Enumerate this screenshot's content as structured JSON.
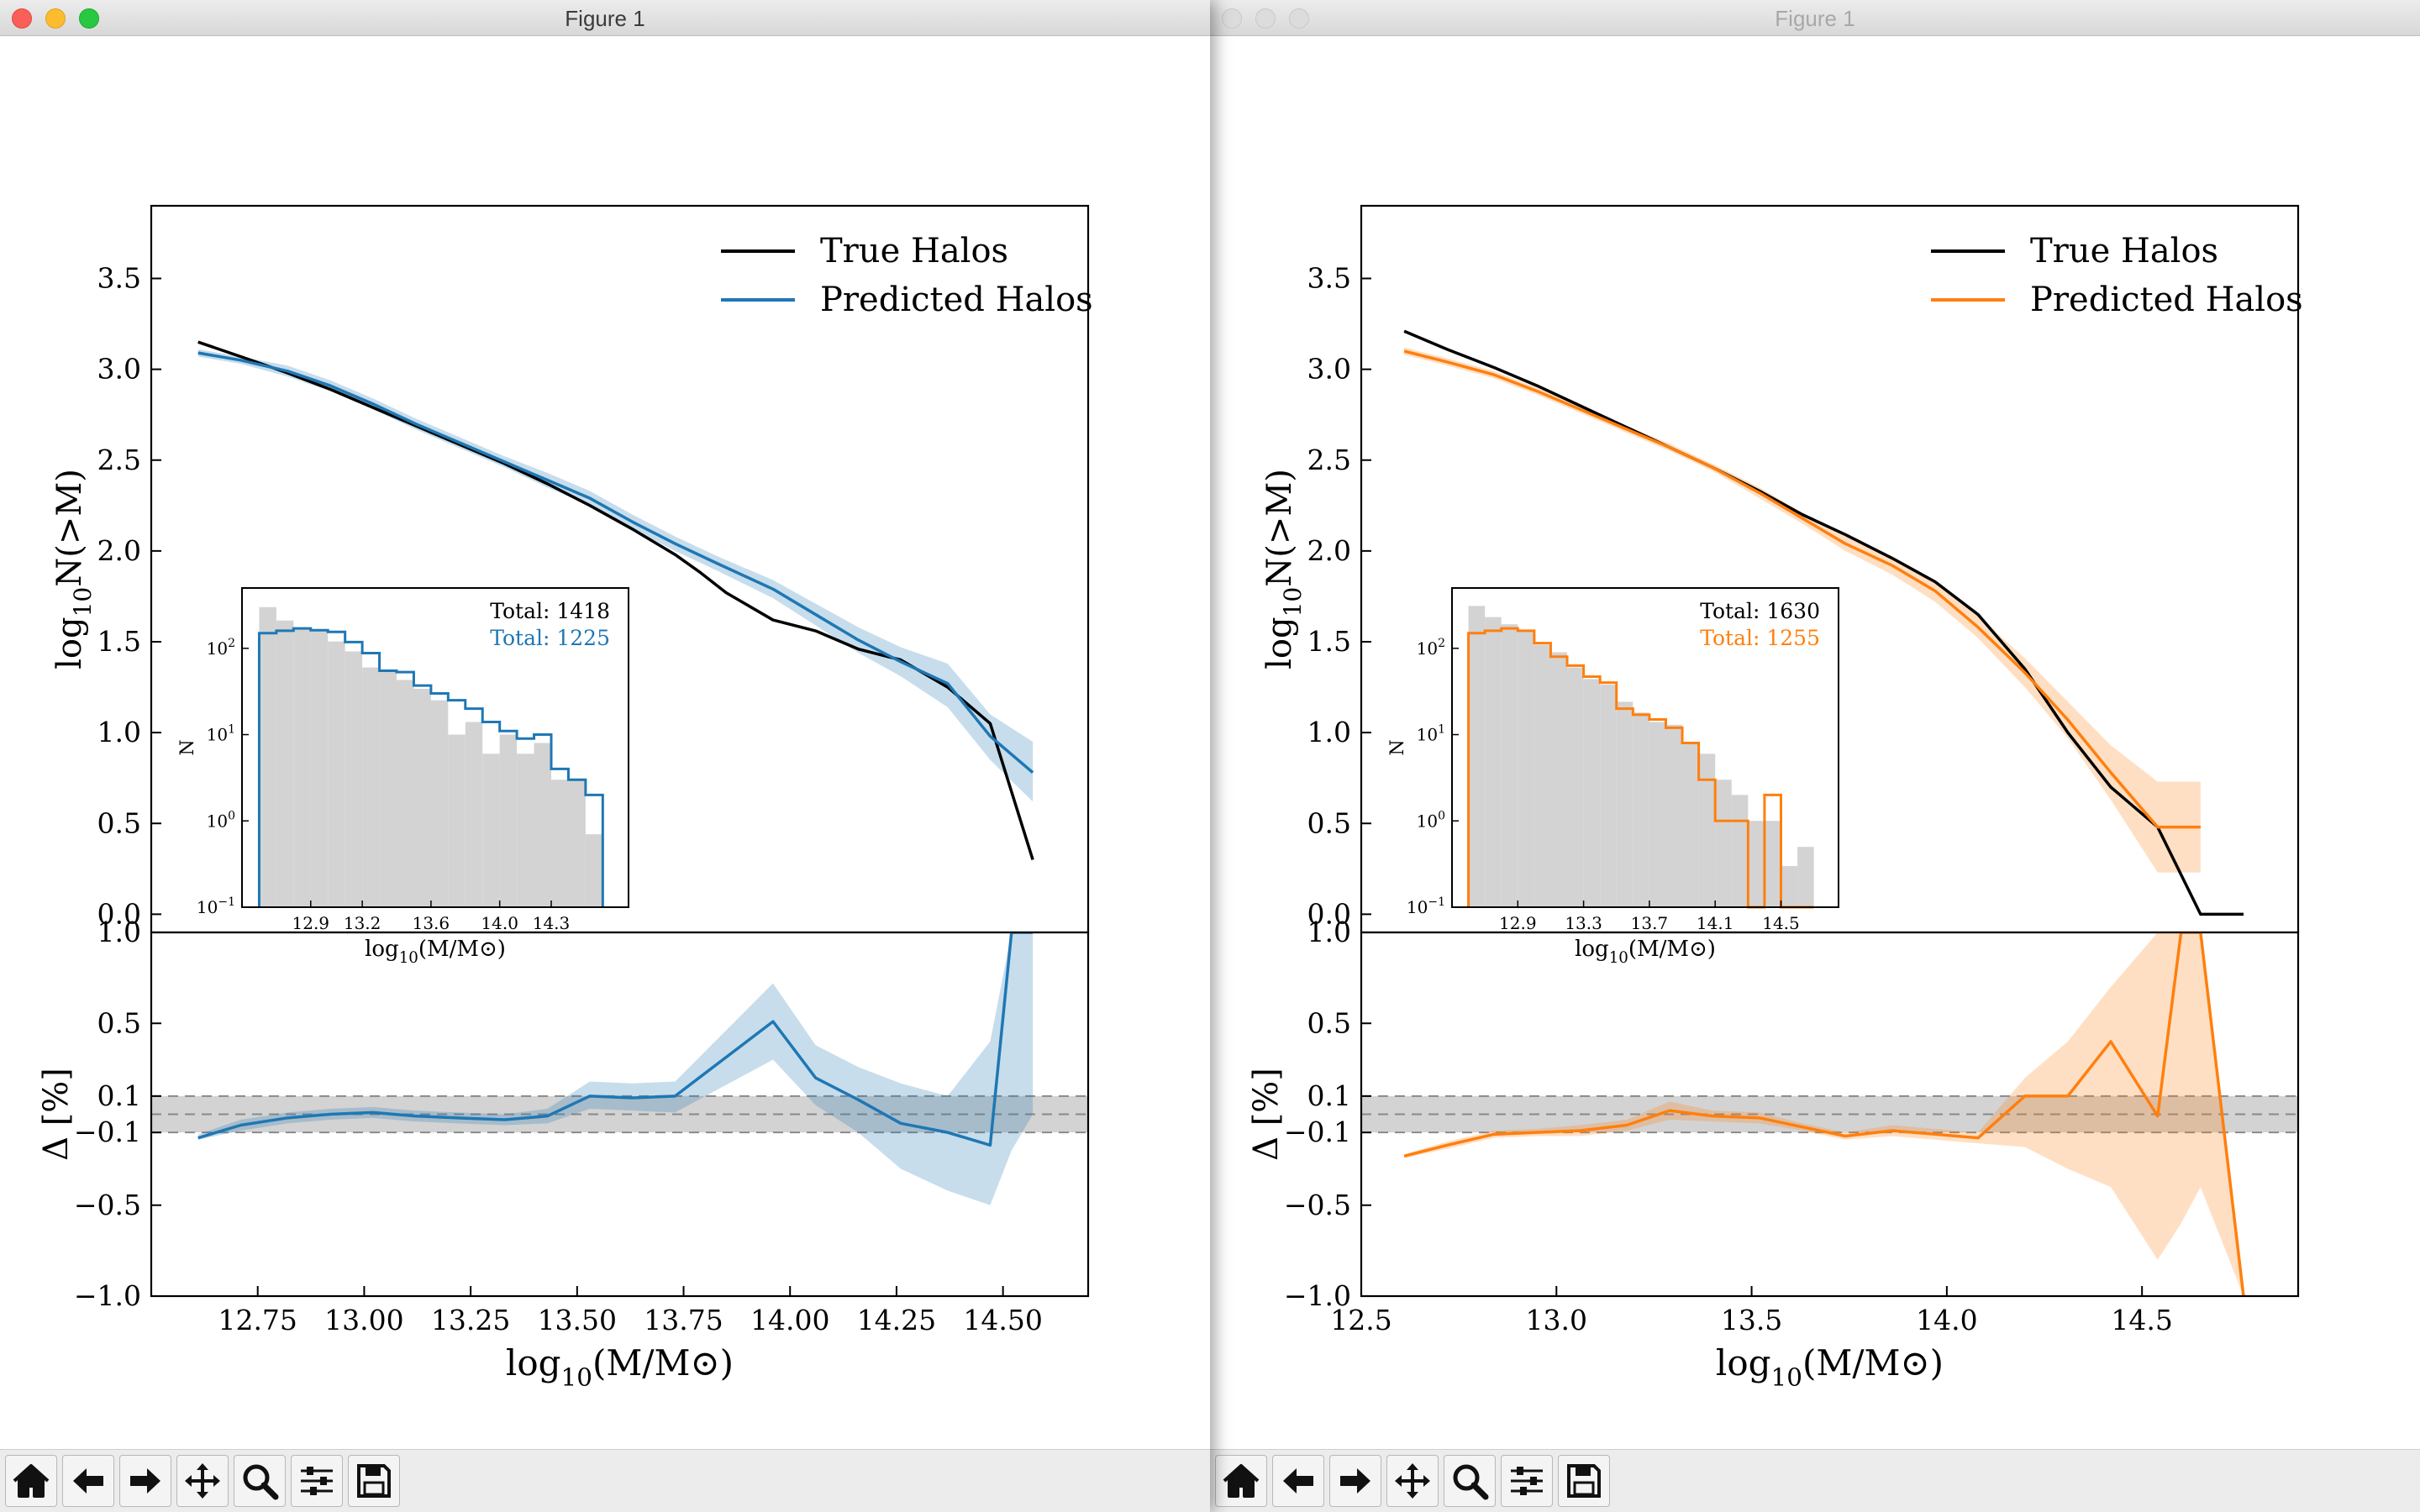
{
  "windows": [
    {
      "title": "Figure 1",
      "chart_data": [
        {
          "type": "line",
          "panel": "main",
          "ylabel": "log10N(>M)",
          "xlim": [
            12.5,
            14.7
          ],
          "ylim": [
            -0.1,
            3.9
          ],
          "yticks": [
            0.0,
            0.5,
            1.0,
            1.5,
            2.0,
            2.5,
            3.0,
            3.5
          ],
          "legend_location": "upper-right",
          "series": [
            {
              "name": "True Halos",
              "color": "#000000",
              "x": [
                12.61,
                12.71,
                12.82,
                12.92,
                13.02,
                13.12,
                13.22,
                13.33,
                13.43,
                13.53,
                13.63,
                13.73,
                13.79,
                13.85,
                13.96,
                14.06,
                14.16,
                14.26,
                14.37,
                14.47,
                14.57
              ],
              "y": [
                3.15,
                3.07,
                2.98,
                2.89,
                2.79,
                2.69,
                2.59,
                2.48,
                2.37,
                2.25,
                2.12,
                1.98,
                1.88,
                1.77,
                1.62,
                1.56,
                1.46,
                1.4,
                1.25,
                1.05,
                0.3
              ]
            },
            {
              "name": "Predicted Halos",
              "color": "#1f77b4",
              "x": [
                12.61,
                12.71,
                12.82,
                12.92,
                13.02,
                13.12,
                13.22,
                13.33,
                13.43,
                13.53,
                13.63,
                13.73,
                13.83,
                13.96,
                14.06,
                14.16,
                14.26,
                14.37,
                14.47,
                14.57
              ],
              "y": [
                3.09,
                3.05,
                2.99,
                2.91,
                2.81,
                2.7,
                2.6,
                2.49,
                2.39,
                2.29,
                2.16,
                2.04,
                1.93,
                1.79,
                1.65,
                1.51,
                1.39,
                1.27,
                0.98,
                0.78
              ],
              "band_low": [
                3.07,
                3.03,
                2.96,
                2.88,
                2.78,
                2.67,
                2.57,
                2.46,
                2.35,
                2.25,
                2.12,
                2.0,
                1.89,
                1.74,
                1.59,
                1.44,
                1.31,
                1.14,
                0.85,
                0.62
              ],
              "band_high": [
                3.11,
                3.07,
                3.02,
                2.94,
                2.84,
                2.73,
                2.63,
                2.52,
                2.43,
                2.33,
                2.2,
                2.08,
                1.97,
                1.84,
                1.71,
                1.58,
                1.47,
                1.38,
                1.1,
                0.95
              ]
            }
          ]
        },
        {
          "type": "line",
          "panel": "residual",
          "ylabel": "Δ [%]",
          "xlabel": "log10(M/M⊙)",
          "xlim": [
            12.5,
            14.7
          ],
          "ylim": [
            -1.0,
            1.0
          ],
          "yticks": [
            -1.0,
            -0.5,
            -0.1,
            0.1,
            0.5,
            1.0
          ],
          "ytick_labels": [
            "−1.0",
            "−0.5",
            "−0.1",
            "0.1",
            "0.5",
            "1.0"
          ],
          "xticks": [
            12.75,
            13.0,
            13.25,
            13.5,
            13.75,
            14.0,
            14.25,
            14.5
          ],
          "xtick_labels": [
            "12.75",
            "13.00",
            "13.25",
            "13.50",
            "13.75",
            "14.00",
            "14.25",
            "14.50"
          ],
          "band_range": [
            -0.1,
            0.1
          ],
          "series": [
            {
              "name": "Predicted Halos",
              "color": "#1f77b4",
              "x": [
                12.61,
                12.71,
                12.82,
                12.92,
                13.02,
                13.12,
                13.22,
                13.33,
                13.43,
                13.53,
                13.63,
                13.73,
                13.96,
                14.06,
                14.16,
                14.26,
                14.37,
                14.47,
                14.52,
                14.57
              ],
              "y": [
                -0.13,
                -0.06,
                -0.02,
                0.0,
                0.01,
                -0.01,
                -0.02,
                -0.03,
                -0.01,
                0.1,
                0.09,
                0.1,
                0.51,
                0.2,
                0.08,
                -0.05,
                -0.1,
                -0.17,
                1.0,
                1.0
              ],
              "band_low": [
                -0.14,
                -0.09,
                -0.05,
                -0.03,
                -0.02,
                -0.04,
                -0.05,
                -0.06,
                -0.05,
                0.03,
                0.02,
                0.01,
                0.3,
                0.05,
                -0.1,
                -0.3,
                -0.42,
                -0.5,
                -0.2,
                0.0
              ],
              "band_high": [
                -0.11,
                -0.03,
                0.01,
                0.03,
                0.04,
                0.02,
                0.01,
                0.0,
                0.03,
                0.18,
                0.17,
                0.18,
                0.72,
                0.38,
                0.26,
                0.17,
                0.1,
                0.4,
                1.0,
                1.0
              ]
            }
          ]
        },
        {
          "type": "bar",
          "panel": "inset",
          "xlabel": "log10(M/M⊙)",
          "ylabel": "N",
          "yscale": "log",
          "ylim": [
            0.1,
            500
          ],
          "yticks": [
            0.1,
            1,
            10,
            100
          ],
          "xlim": [
            12.5,
            14.75
          ],
          "xticks": [
            12.9,
            13.2,
            13.6,
            14.0,
            14.3
          ],
          "xtick_labels": [
            "12.9",
            "13.2",
            "13.6",
            "14.0",
            "14.3"
          ],
          "bin_start": 12.6,
          "bin_width": 0.1,
          "series": [
            {
              "name": "True Halos",
              "color": "#d3d3d3",
              "total_label": "Total: 1418",
              "total_color": "#000000",
              "values": [
                300,
                210,
                175,
                160,
                120,
                92,
                60,
                57,
                43,
                34,
                25,
                10,
                14,
                6,
                10,
                6,
                8,
                3,
                3,
                0.7
              ]
            },
            {
              "name": "Predicted Halos",
              "color": "#1f77b4",
              "total_label": "Total: 1225",
              "total_color": "#1f77b4",
              "values": [
                150,
                160,
                170,
                162,
                155,
                118,
                88,
                55,
                53,
                37,
                30,
                25,
                20,
                14,
                11,
                9,
                10,
                4,
                3,
                2
              ]
            }
          ]
        }
      ]
    },
    {
      "title": "Figure 1",
      "chart_data": [
        {
          "type": "line",
          "panel": "main",
          "ylabel": "log10N(>M)",
          "xlim": [
            12.5,
            14.9
          ],
          "ylim": [
            -0.1,
            3.9
          ],
          "yticks": [
            0.0,
            0.5,
            1.0,
            1.5,
            2.0,
            2.5,
            3.0,
            3.5
          ],
          "legend_location": "upper-right",
          "series": [
            {
              "name": "True Halos",
              "color": "#000000",
              "x": [
                12.61,
                12.72,
                12.84,
                12.95,
                13.06,
                13.18,
                13.29,
                13.4,
                13.52,
                13.63,
                13.74,
                13.86,
                13.97,
                14.08,
                14.2,
                14.31,
                14.42,
                14.54,
                14.65,
                14.76
              ],
              "y": [
                3.21,
                3.11,
                3.01,
                2.91,
                2.8,
                2.68,
                2.57,
                2.46,
                2.33,
                2.2,
                2.09,
                1.96,
                1.83,
                1.65,
                1.35,
                1.0,
                0.7,
                0.48,
                0.0,
                0.0
              ]
            },
            {
              "name": "Predicted Halos",
              "color": "#ff7f0e",
              "x": [
                12.61,
                12.72,
                12.84,
                12.95,
                13.06,
                13.18,
                13.29,
                13.4,
                13.52,
                13.63,
                13.74,
                13.86,
                13.97,
                14.08,
                14.2,
                14.31,
                14.42,
                14.54,
                14.65
              ],
              "y": [
                3.1,
                3.04,
                2.97,
                2.88,
                2.78,
                2.67,
                2.57,
                2.46,
                2.32,
                2.18,
                2.04,
                1.92,
                1.78,
                1.58,
                1.33,
                1.07,
                0.78,
                0.48,
                0.48
              ],
              "band_low": [
                3.08,
                3.02,
                2.95,
                2.86,
                2.76,
                2.65,
                2.55,
                2.44,
                2.29,
                2.15,
                2.0,
                1.87,
                1.72,
                1.52,
                1.25,
                0.97,
                0.63,
                0.23,
                0.23
              ],
              "band_high": [
                3.12,
                3.06,
                2.99,
                2.9,
                2.8,
                2.69,
                2.59,
                2.48,
                2.35,
                2.21,
                2.08,
                1.97,
                1.84,
                1.64,
                1.41,
                1.17,
                0.93,
                0.73,
                0.73
              ]
            }
          ]
        },
        {
          "type": "line",
          "panel": "residual",
          "ylabel": "Δ [%]",
          "xlabel": "log10(M/M⊙)",
          "xlim": [
            12.5,
            14.9
          ],
          "ylim": [
            -1.0,
            1.0
          ],
          "yticks": [
            -1.0,
            -0.5,
            -0.1,
            0.1,
            0.5,
            1.0
          ],
          "ytick_labels": [
            "−1.0",
            "−0.5",
            "−0.1",
            "0.1",
            "0.5",
            "1.0"
          ],
          "xticks": [
            12.5,
            13.0,
            13.5,
            14.0,
            14.5
          ],
          "xtick_labels": [
            "12.5",
            "13.0",
            "13.5",
            "14.0",
            "14.5"
          ],
          "band_range": [
            -0.1,
            0.1
          ],
          "series": [
            {
              "name": "Predicted Halos",
              "color": "#ff7f0e",
              "x": [
                12.61,
                12.72,
                12.84,
                12.95,
                13.06,
                13.18,
                13.29,
                13.4,
                13.52,
                13.63,
                13.74,
                13.86,
                13.97,
                14.08,
                14.2,
                14.31,
                14.42,
                14.54,
                14.6,
                14.65,
                14.76
              ],
              "y": [
                -0.23,
                -0.17,
                -0.11,
                -0.1,
                -0.09,
                -0.06,
                0.02,
                -0.01,
                -0.02,
                -0.07,
                -0.12,
                -0.09,
                -0.11,
                -0.13,
                0.1,
                0.1,
                0.4,
                -0.01,
                1.0,
                1.0,
                -1.0
              ],
              "band_low": [
                -0.24,
                -0.19,
                -0.13,
                -0.12,
                -0.12,
                -0.09,
                -0.03,
                -0.04,
                -0.05,
                -0.09,
                -0.14,
                -0.12,
                -0.14,
                -0.16,
                -0.18,
                -0.3,
                -0.4,
                -0.8,
                -0.6,
                -0.4,
                -1.0
              ],
              "band_high": [
                -0.22,
                -0.15,
                -0.09,
                -0.08,
                -0.06,
                -0.03,
                0.07,
                0.02,
                0.01,
                -0.05,
                -0.1,
                -0.06,
                -0.08,
                -0.1,
                0.2,
                0.4,
                0.7,
                1.0,
                1.0,
                1.0,
                -1.0
              ]
            }
          ]
        },
        {
          "type": "bar",
          "panel": "inset",
          "xlabel": "log10(M/M⊙)",
          "ylabel": "N",
          "yscale": "log",
          "ylim": [
            0.1,
            500
          ],
          "yticks": [
            0.1,
            1,
            10,
            100
          ],
          "xlim": [
            12.5,
            14.85
          ],
          "xticks": [
            12.9,
            13.3,
            13.7,
            14.1,
            14.5
          ],
          "xtick_labels": [
            "12.9",
            "13.3",
            "13.7",
            "14.1",
            "14.5"
          ],
          "bin_start": 12.6,
          "bin_width": 0.1,
          "series": [
            {
              "name": "True Halos",
              "color": "#d3d3d3",
              "total_label": "Total: 1630",
              "total_color": "#000000",
              "values": [
                310,
                230,
                190,
                160,
                110,
                90,
                60,
                44,
                38,
                24,
                18,
                14,
                13,
                8,
                6,
                3,
                2,
                1,
                1,
                0.3,
                0.5
              ]
            },
            {
              "name": "Predicted Halos",
              "color": "#ff7f0e",
              "total_label": "Total: 1255",
              "total_color": "#ff7f0e",
              "values": [
                150,
                160,
                170,
                160,
                115,
                80,
                63,
                47,
                40,
                20,
                17,
                15,
                12,
                8,
                3,
                1,
                1,
                0.1,
                2,
                0.1,
                0.1
              ]
            }
          ]
        }
      ]
    }
  ],
  "toolbar_icons": [
    "home-icon",
    "back-arrow-icon",
    "forward-arrow-icon",
    "pan-icon",
    "zoom-icon",
    "configure-subplots-icon",
    "save-icon"
  ],
  "legend_labels": [
    "True Halos",
    "Predicted Halos"
  ]
}
